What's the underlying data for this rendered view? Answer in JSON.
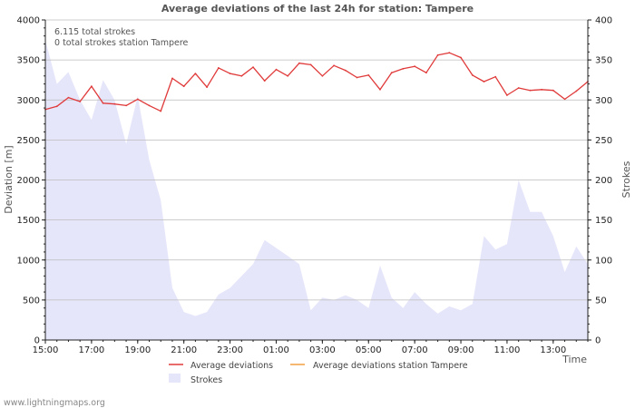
{
  "chart_data": {
    "type": "line",
    "title": "Average deviations of the last 24h for station: Tampere",
    "info_lines": [
      "6.115 total strokes",
      "0 total strokes station Tampere"
    ],
    "xlabel": "Time",
    "ylabel_left": "Deviation  [m]",
    "ylabel_right": "Strokes",
    "ylim_left": [
      0,
      4000
    ],
    "ylim_right": [
      0,
      400
    ],
    "yticks_left": [
      "0",
      "500",
      "1000",
      "1500",
      "2000",
      "2500",
      "3000",
      "3500",
      "4000"
    ],
    "yticks_right": [
      "0",
      "50",
      "100",
      "150",
      "200",
      "250",
      "300",
      "350",
      "400"
    ],
    "x_range_hours": [
      0,
      23.5
    ],
    "x_tick_labels": [
      "15:00",
      "17:00",
      "19:00",
      "21:00",
      "23:00",
      "01:00",
      "03:00",
      "05:00",
      "07:00",
      "09:00",
      "11:00",
      "13:00"
    ],
    "x_tick_hours": [
      0,
      2,
      4,
      6,
      8,
      10,
      12,
      14,
      16,
      18,
      20,
      22
    ],
    "grid": true,
    "series": [
      {
        "name": "Average deviations",
        "kind": "line",
        "axis": "left",
        "color": "#e03a3a",
        "values": [
          2880,
          2920,
          3030,
          2980,
          3170,
          2960,
          2950,
          2930,
          3010,
          2930,
          2860,
          3270,
          3170,
          3330,
          3160,
          3400,
          3330,
          3300,
          3410,
          3240,
          3380,
          3300,
          3460,
          3440,
          3300,
          3430,
          3370,
          3280,
          3310,
          3130,
          3340,
          3390,
          3420,
          3340,
          3560,
          3590,
          3530,
          3310,
          3230,
          3290,
          3060,
          3150,
          3120,
          3130,
          3120,
          3010,
          3110,
          3230
        ]
      },
      {
        "name": "Average deviations station Tampere",
        "kind": "line",
        "axis": "left",
        "color": "#f0a040",
        "values": []
      },
      {
        "name": "Strokes",
        "kind": "area",
        "axis": "right",
        "color": "#e6e6fb",
        "values": [
          375,
          320,
          335,
          300,
          275,
          325,
          300,
          245,
          305,
          225,
          175,
          65,
          35,
          30,
          35,
          57,
          65,
          80,
          95,
          125,
          115,
          105,
          95,
          37,
          53,
          50,
          56,
          50,
          40,
          93,
          53,
          40,
          60,
          45,
          33,
          42,
          37,
          45,
          130,
          113,
          120,
          200,
          160,
          160,
          130,
          85,
          117,
          95
        ]
      }
    ]
  },
  "legend": {
    "items": [
      {
        "label": "Average deviations",
        "color": "#e03a3a",
        "kind": "line"
      },
      {
        "label": "Average deviations station Tampere",
        "color": "#f0a040",
        "kind": "line"
      },
      {
        "label": "Strokes",
        "color": "#e6e6fb",
        "kind": "area"
      }
    ]
  },
  "credit": "www.lightningmaps.org"
}
